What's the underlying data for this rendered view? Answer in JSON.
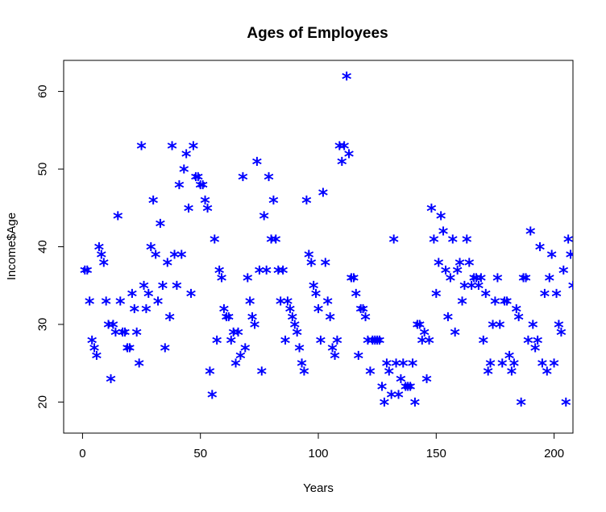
{
  "chart_data": {
    "type": "scatter",
    "title": "Ages of Employees",
    "xlabel": "Years",
    "ylabel": "Income$Age",
    "xlim": [
      -8,
      208
    ],
    "ylim": [
      16,
      64
    ],
    "xticks": [
      0,
      50,
      100,
      150,
      200
    ],
    "yticks": [
      20,
      30,
      40,
      50,
      60
    ],
    "grid": false,
    "marker": "*",
    "color": "#0000FF",
    "x": [
      1,
      2,
      3,
      4,
      5,
      6,
      7,
      8,
      9,
      10,
      11,
      12,
      13,
      14,
      15,
      16,
      17,
      18,
      19,
      20,
      21,
      22,
      23,
      24,
      25,
      26,
      27,
      28,
      29,
      30,
      31,
      32,
      33,
      34,
      35,
      36,
      37,
      38,
      39,
      40,
      41,
      42,
      43,
      44,
      45,
      46,
      47,
      48,
      49,
      50,
      51,
      52,
      53,
      54,
      55,
      56,
      57,
      58,
      59,
      60,
      61,
      62,
      63,
      64,
      65,
      66,
      67,
      68,
      69,
      70,
      71,
      72,
      73,
      74,
      75,
      76,
      77,
      78,
      79,
      80,
      81,
      82,
      83,
      84,
      85,
      86,
      87,
      88,
      89,
      90,
      91,
      92,
      93,
      94,
      95,
      96,
      97,
      98,
      99,
      100,
      101,
      102,
      103,
      104,
      105,
      106,
      107,
      108,
      109,
      110,
      111,
      112,
      113,
      114,
      115,
      116,
      117,
      118,
      119,
      120,
      121,
      122,
      123,
      124,
      125,
      126,
      127,
      128,
      129,
      130,
      131,
      132,
      133,
      134,
      135,
      136,
      137,
      138,
      139,
      140,
      141,
      142,
      143,
      144,
      145,
      146,
      147,
      148,
      149,
      150,
      151,
      152,
      153,
      154,
      155,
      156,
      157,
      158,
      159,
      160,
      161,
      162,
      163,
      164,
      165,
      166,
      167,
      168,
      169,
      170,
      171,
      172,
      173,
      174,
      175,
      176,
      177,
      178,
      179,
      180,
      181,
      182,
      183,
      184,
      185,
      186,
      187,
      188,
      189,
      190,
      191,
      192,
      193,
      194,
      195,
      196,
      197,
      198,
      199,
      200,
      201,
      202,
      203,
      204,
      205,
      206,
      207,
      208
    ],
    "y": [
      37,
      37,
      33,
      28,
      27,
      26,
      40,
      39,
      38,
      33,
      30,
      23,
      30,
      29,
      44,
      33,
      29,
      29,
      27,
      27,
      34,
      32,
      29,
      25,
      53,
      35,
      32,
      34,
      40,
      46,
      39,
      33,
      43,
      35,
      27,
      38,
      31,
      53,
      39,
      35,
      48,
      39,
      50,
      52,
      45,
      34,
      53,
      49,
      49,
      48,
      48,
      46,
      45,
      24,
      21,
      41,
      28,
      37,
      36,
      32,
      31,
      31,
      28,
      29,
      25,
      29,
      26,
      49,
      27,
      36,
      33,
      31,
      30,
      51,
      37,
      24,
      44,
      37,
      49,
      41,
      46,
      41,
      37,
      33,
      37,
      28,
      33,
      32,
      31,
      30,
      29,
      27,
      25,
      24,
      46,
      39,
      38,
      35,
      34,
      32,
      28,
      47,
      38,
      33,
      31,
      27,
      26,
      28,
      53,
      51,
      53,
      62,
      52,
      36,
      36,
      34,
      26,
      32,
      32,
      31,
      28,
      24,
      28,
      28,
      28,
      28,
      22,
      20,
      25,
      24,
      21,
      41,
      25,
      21,
      23,
      25,
      22,
      22,
      22,
      25,
      20,
      30,
      30,
      28,
      29,
      23,
      28,
      45,
      41,
      34,
      38,
      44,
      42,
      37,
      31,
      36,
      41,
      29,
      37,
      38,
      33,
      35,
      41,
      38,
      35,
      36,
      36,
      35,
      36,
      28,
      34,
      24,
      25,
      30,
      33,
      36,
      30,
      25,
      33,
      33,
      26,
      24,
      25,
      32,
      31,
      20,
      36,
      36,
      28,
      42,
      30,
      27,
      28,
      40,
      25,
      34,
      24,
      36,
      39,
      25,
      34,
      30,
      29,
      37,
      20,
      41,
      39,
      35
    ]
  }
}
